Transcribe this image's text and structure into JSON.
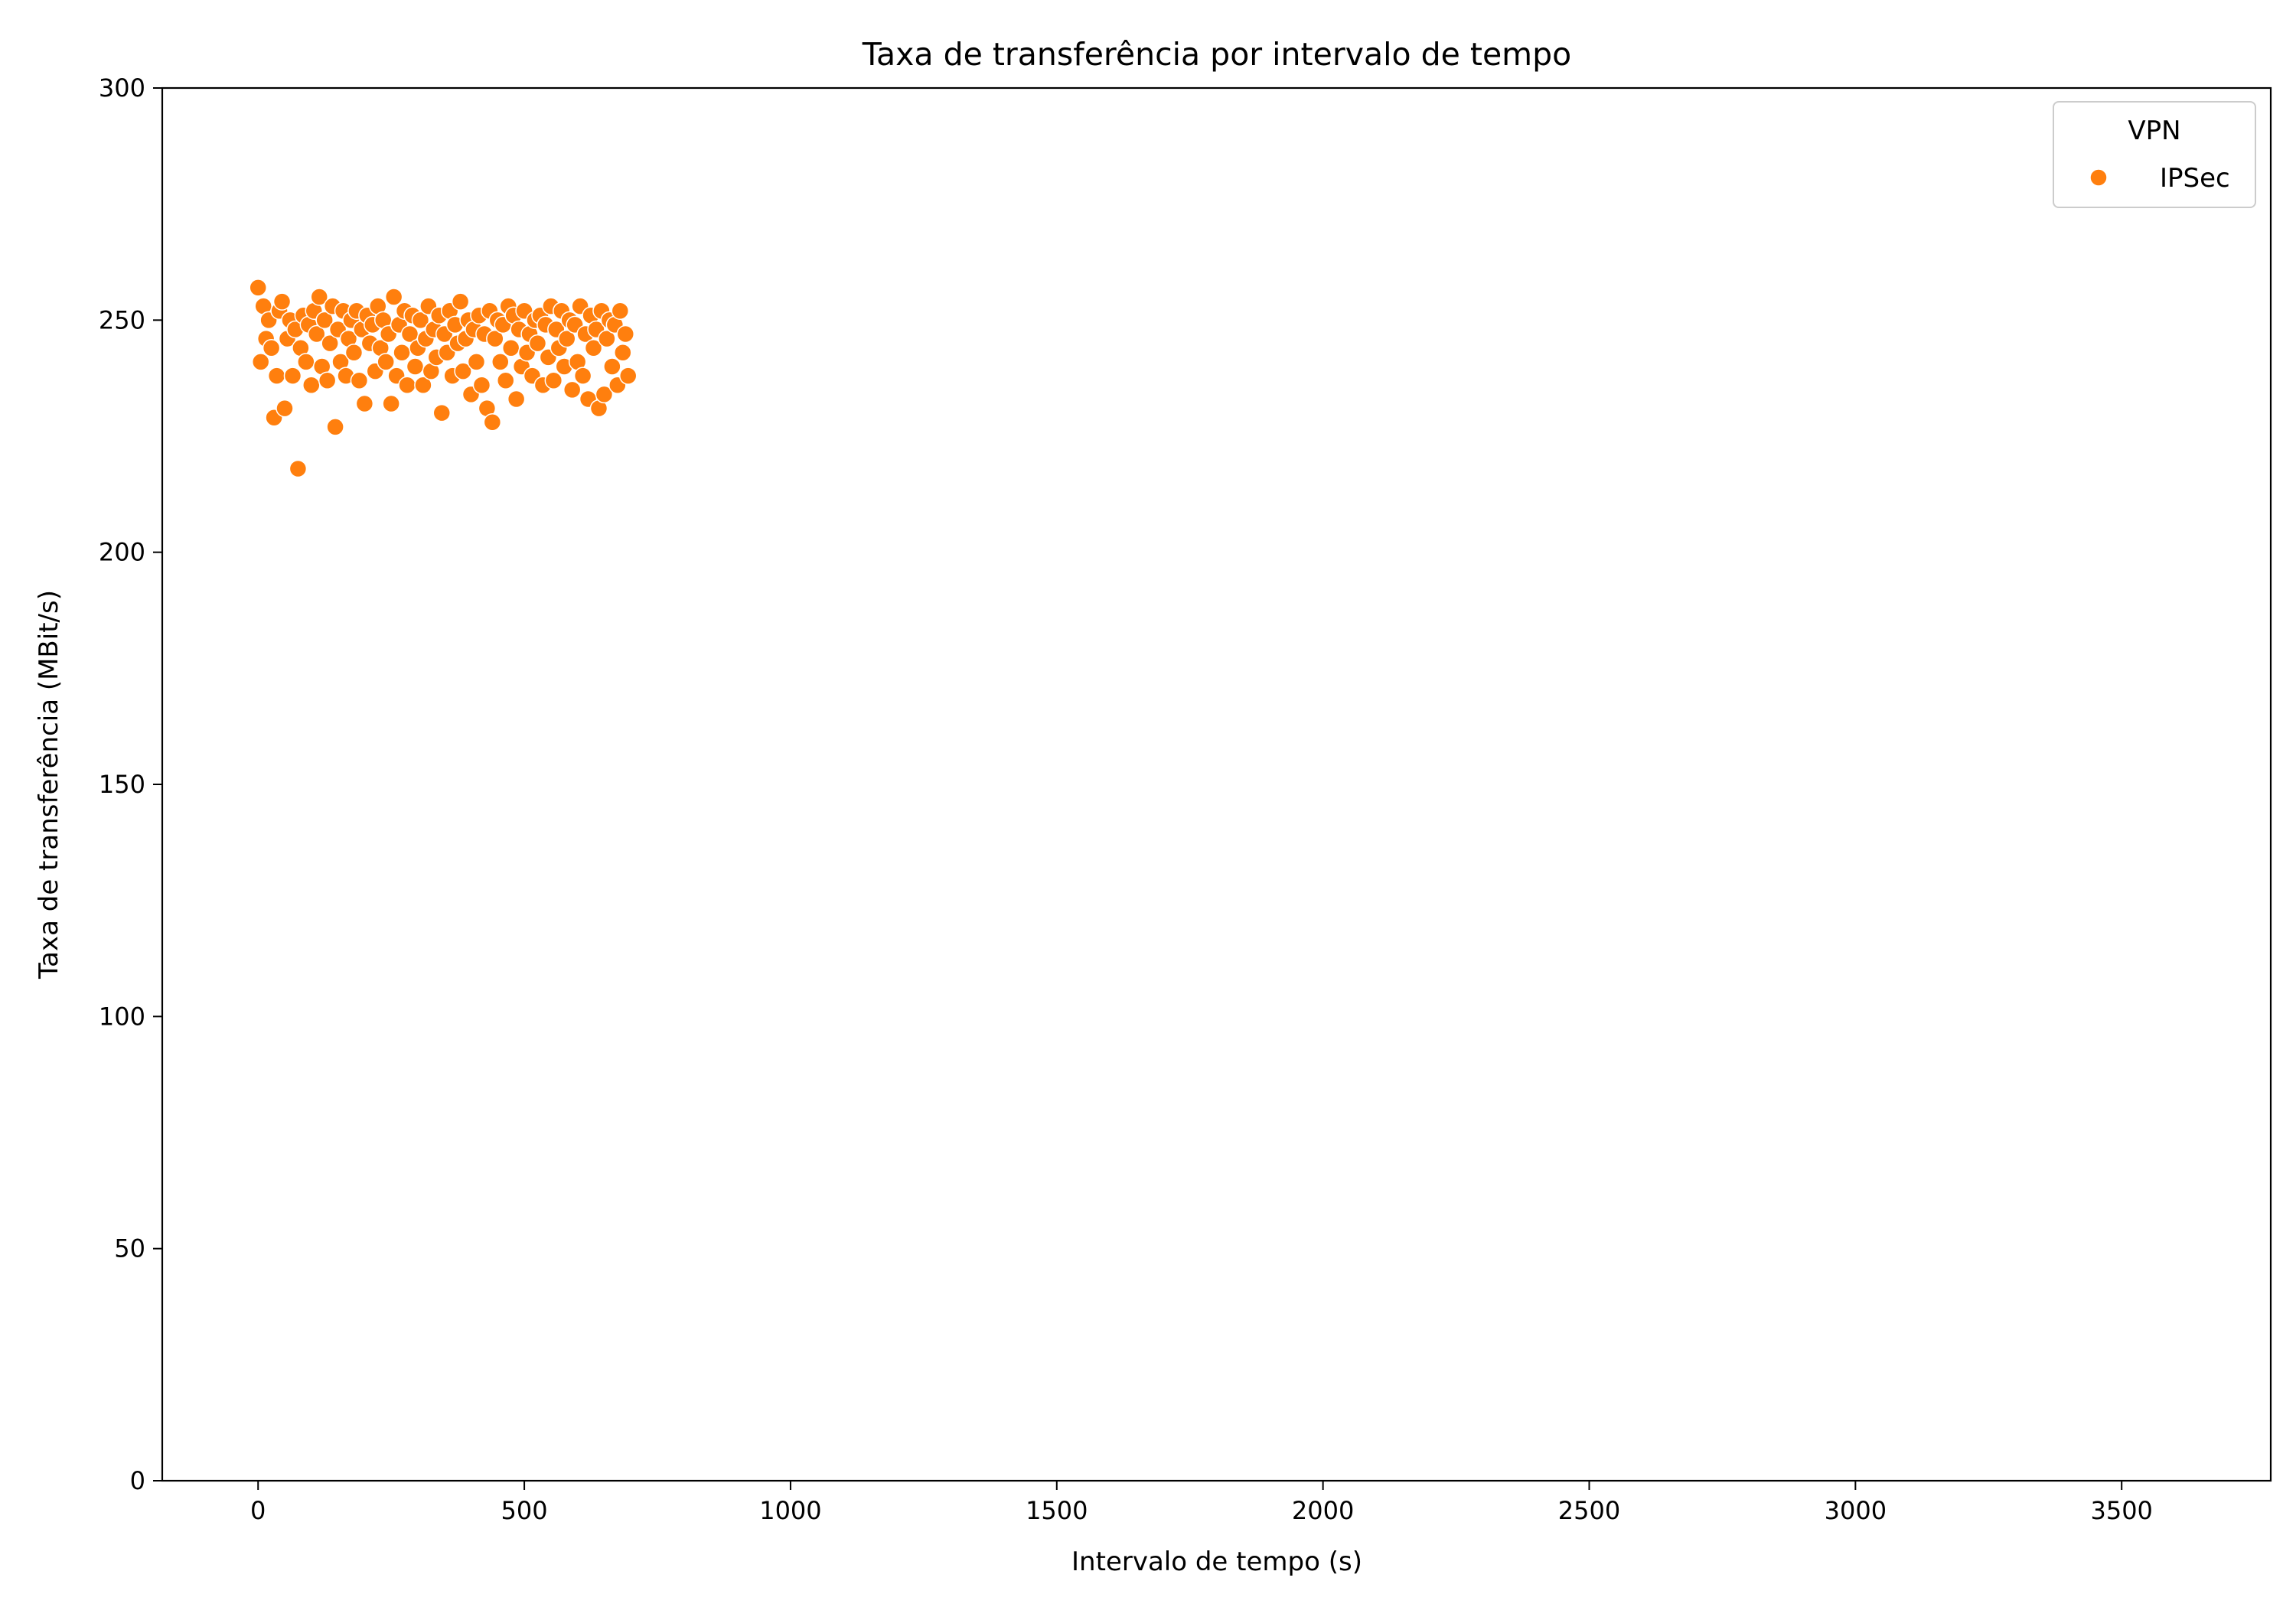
{
  "chart_data": {
    "type": "scatter",
    "title": "Taxa de transferência por intervalo de tempo",
    "xlabel": "Intervalo de tempo (s)",
    "ylabel": "Taxa de transferência (MBit/s)",
    "xlim": [
      -180,
      3780
    ],
    "ylim": [
      0,
      300
    ],
    "xticks": [
      0,
      500,
      1000,
      1500,
      2000,
      2500,
      3000,
      3500
    ],
    "yticks": [
      0,
      50,
      100,
      150,
      200,
      250,
      300
    ],
    "grid": false,
    "legend": {
      "title": "VPN",
      "placement": "top-right",
      "entries": [
        "IPSec"
      ]
    },
    "series": [
      {
        "name": "IPSec",
        "color": "#ff7f0e",
        "x_start": 0,
        "x_step": 5,
        "values": [
          257,
          241,
          253,
          246,
          250,
          244,
          229,
          238,
          252,
          254,
          231,
          246,
          250,
          238,
          248,
          218,
          244,
          251,
          241,
          249,
          236,
          252,
          247,
          255,
          240,
          250,
          237,
          245,
          253,
          227,
          248,
          241,
          252,
          238,
          246,
          250,
          243,
          252,
          237,
          248,
          232,
          251,
          245,
          249,
          239,
          253,
          244,
          250,
          241,
          247,
          232,
          255,
          238,
          249,
          243,
          252,
          236,
          247,
          251,
          240,
          244,
          250,
          236,
          246,
          253,
          239,
          248,
          242,
          251,
          230,
          247,
          243,
          252,
          238,
          249,
          245,
          254,
          239,
          246,
          250,
          234,
          248,
          241,
          251,
          236,
          247,
          231,
          252,
          228,
          246,
          250,
          241,
          249,
          237,
          253,
          244,
          251,
          233,
          248,
          240,
          252,
          243,
          247,
          238,
          250,
          245,
          251,
          236,
          249,
          242,
          253,
          237,
          248,
          244,
          252,
          240,
          246,
          250,
          235,
          249,
          241,
          253,
          238,
          247,
          233,
          251,
          244,
          248,
          231,
          252,
          234,
          246,
          250,
          240,
          249,
          236,
          252,
          243,
          247,
          238
        ]
      }
    ]
  }
}
